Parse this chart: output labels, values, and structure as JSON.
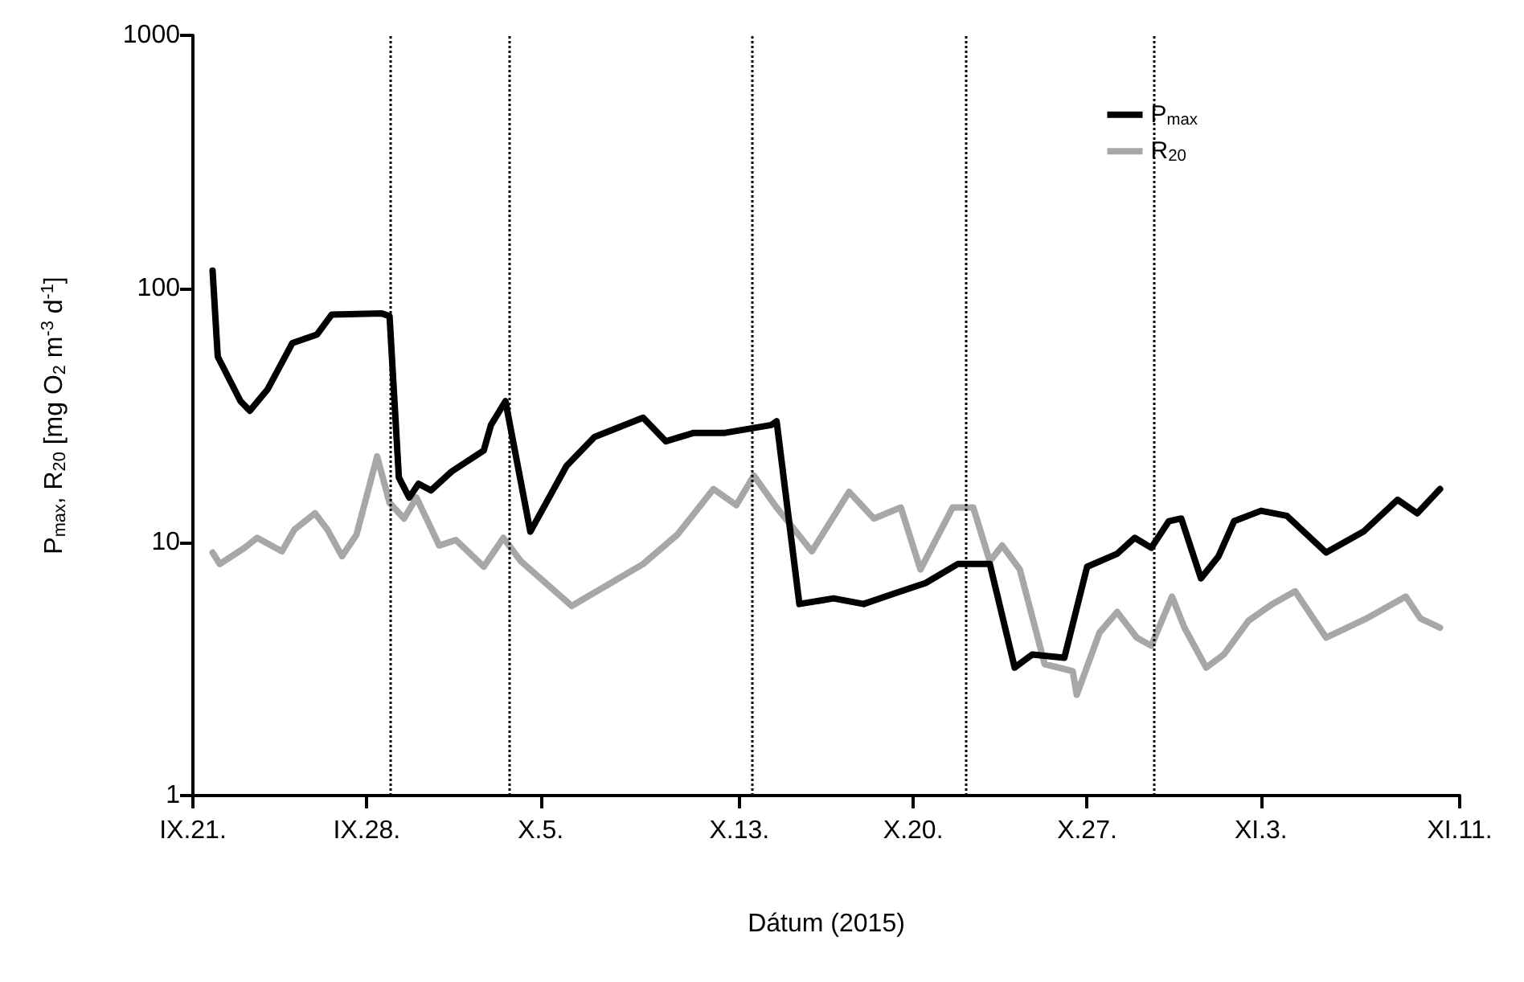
{
  "chart_data": {
    "type": "line",
    "xlabel": "Dátum (2015)",
    "ylabel": "P$_{max}$, R$_{20}$ [mg O$_{2}$ m$^{-3}$ d$^{-1}$]",
    "xlim": [
      "2015-09-21",
      "2015-11-11"
    ],
    "xticks": [
      {
        "value": "2015-09-21",
        "label": "IX.21."
      },
      {
        "value": "2015-09-28",
        "label": "IX.28."
      },
      {
        "value": "2015-10-05",
        "label": "X.5."
      },
      {
        "value": "2015-10-13",
        "label": "X.13."
      },
      {
        "value": "2015-10-20",
        "label": "X.20."
      },
      {
        "value": "2015-10-27",
        "label": "X.27."
      },
      {
        "value": "2015-11-03",
        "label": "XI.3."
      },
      {
        "value": "2015-11-11",
        "label": "XI.11."
      }
    ],
    "ylim": [
      1,
      1000
    ],
    "yticks": [
      1,
      10,
      100,
      1000
    ],
    "log": "y",
    "grid": false,
    "legend": "top right",
    "marker": "none",
    "line_style": "solid",
    "ref_lines": [
      {
        "axis": "x",
        "value": "2015-09-28T22:00",
        "color": "#000000",
        "line_style": "dotted"
      },
      {
        "axis": "x",
        "value": "2015-10-03T17:00",
        "color": "#000000",
        "line_style": "dotted"
      },
      {
        "axis": "x",
        "value": "2015-10-13T12:00",
        "color": "#000000",
        "line_style": "dotted"
      },
      {
        "axis": "x",
        "value": "2015-10-22T02:00",
        "color": "#000000",
        "line_style": "dotted"
      },
      {
        "axis": "x",
        "value": "2015-10-29T17:00",
        "color": "#000000",
        "line_style": "dotted"
      }
    ],
    "series": [
      {
        "name": "P$_{max}$",
        "color": "#000000",
        "x": [
          "2015-09-21T19:00",
          "2015-09-22T00:00",
          "2015-09-22T22:00",
          "2015-09-23T07:00",
          "2015-09-24T00:00",
          "2015-09-25T00:00",
          "2015-09-26T00:00",
          "2015-09-26T14:00",
          "2015-09-28T14:00",
          "2015-09-28T22:00",
          "2015-09-29T07:00",
          "2015-09-29T17:00",
          "2015-09-30T02:00",
          "2015-09-30T14:00",
          "2015-10-01T10:00",
          "2015-10-02T17:00",
          "2015-10-03T00:00",
          "2015-10-03T14:00",
          "2015-10-04T14:00",
          "2015-10-06T01:00",
          "2015-10-07T04:00",
          "2015-10-09T03:00",
          "2015-10-10T01:00",
          "2015-10-11T04:00",
          "2015-10-12T10:00",
          "2015-10-14T07:00",
          "2015-10-14T12:00",
          "2015-10-15T10:00",
          "2015-10-16T19:00",
          "2015-10-18T00:00",
          "2015-10-19T07:00",
          "2015-10-20T12:00",
          "2015-10-21T19:00",
          "2015-10-23T02:00",
          "2015-10-24T02:00",
          "2015-10-24T19:00",
          "2015-10-26T02:00",
          "2015-10-27T00:00",
          "2015-10-28T05:00",
          "2015-10-28T22:00",
          "2015-10-29T14:00",
          "2015-10-30T07:00",
          "2015-10-30T19:00",
          "2015-10-31T14:00",
          "2015-11-01T07:00",
          "2015-11-01T22:00",
          "2015-11-03T00:00",
          "2015-11-04T01:00",
          "2015-11-05T15:00",
          "2015-11-07T03:00",
          "2015-11-08T12:00",
          "2015-11-09T07:00",
          "2015-11-10T05:00"
        ],
        "values": [
          118,
          54,
          36,
          33,
          40,
          61,
          66,
          79,
          80,
          78,
          18,
          15,
          17,
          16,
          19,
          23,
          29,
          36,
          11,
          20,
          26,
          31,
          25,
          27,
          27,
          29,
          30,
          5.7,
          6.0,
          5.7,
          6.3,
          6.9,
          8.2,
          8.2,
          3.2,
          3.6,
          3.5,
          8.0,
          9.0,
          10.4,
          9.5,
          12.1,
          12.4,
          7.2,
          8.8,
          12.1,
          13.3,
          12.7,
          9.1,
          11,
          14.7,
          13,
          16.2
        ]
      },
      {
        "name": "R$_{20}$",
        "color": "#a6a8a7",
        "x": [
          "2015-09-21T19:00",
          "2015-09-22T02:00",
          "2015-09-23T02:00",
          "2015-09-23T14:00",
          "2015-09-24T14:00",
          "2015-09-25T02:00",
          "2015-09-25T22:00",
          "2015-09-26T10:00",
          "2015-09-27T00:00",
          "2015-09-27T14:00",
          "2015-09-28T10:00",
          "2015-09-28T22:00",
          "2015-09-29T12:00",
          "2015-09-30T00:00",
          "2015-09-30T22:00",
          "2015-10-01T14:00",
          "2015-10-02T17:00",
          "2015-10-03T12:00",
          "2015-10-04T05:00",
          "2015-10-06T06:00",
          "2015-10-09T03:00",
          "2015-10-10T12:00",
          "2015-10-11T23:00",
          "2015-10-12T21:00",
          "2015-10-13T14:00",
          "2015-10-14T12:00",
          "2015-10-15T22:00",
          "2015-10-17T10:00",
          "2015-10-18T10:00",
          "2015-10-19T12:00",
          "2015-10-20T07:00",
          "2015-10-21T14:00",
          "2015-10-22T10:00",
          "2015-10-23T02:00",
          "2015-10-23T14:00",
          "2015-10-24T07:00",
          "2015-10-25T07:00",
          "2015-10-26T10:00",
          "2015-10-26T14:00",
          "2015-10-27T12:00",
          "2015-10-28T05:00",
          "2015-10-29T00:00",
          "2015-10-29T14:00",
          "2015-10-30T10:00",
          "2015-10-30T22:00",
          "2015-10-31T19:00",
          "2015-11-01T12:00",
          "2015-11-02T12:00",
          "2015-11-03T11:00",
          "2015-11-04T09:00",
          "2015-11-05T15:00",
          "2015-11-07T06:00",
          "2015-11-08T20:00",
          "2015-11-09T10:00",
          "2015-11-10T05:00"
        ],
        "values": [
          9.1,
          8.2,
          9.5,
          10.4,
          9.2,
          11.2,
          13,
          11.2,
          8.8,
          10.7,
          21.8,
          14.3,
          12.4,
          15,
          9.7,
          10.2,
          8,
          10.4,
          8.4,
          5.6,
          8.2,
          10.7,
          16.2,
          14,
          18.3,
          13.7,
          9.2,
          15.8,
          12.4,
          13.7,
          7.8,
          13.7,
          13.7,
          8.4,
          9.7,
          7.8,
          3.3,
          3.1,
          2.5,
          4.4,
          5.3,
          4.2,
          3.9,
          6.1,
          4.6,
          3.2,
          3.6,
          4.9,
          5.7,
          6.4,
          4.2,
          5.0,
          6.1,
          5.0,
          4.6
        ]
      }
    ]
  }
}
